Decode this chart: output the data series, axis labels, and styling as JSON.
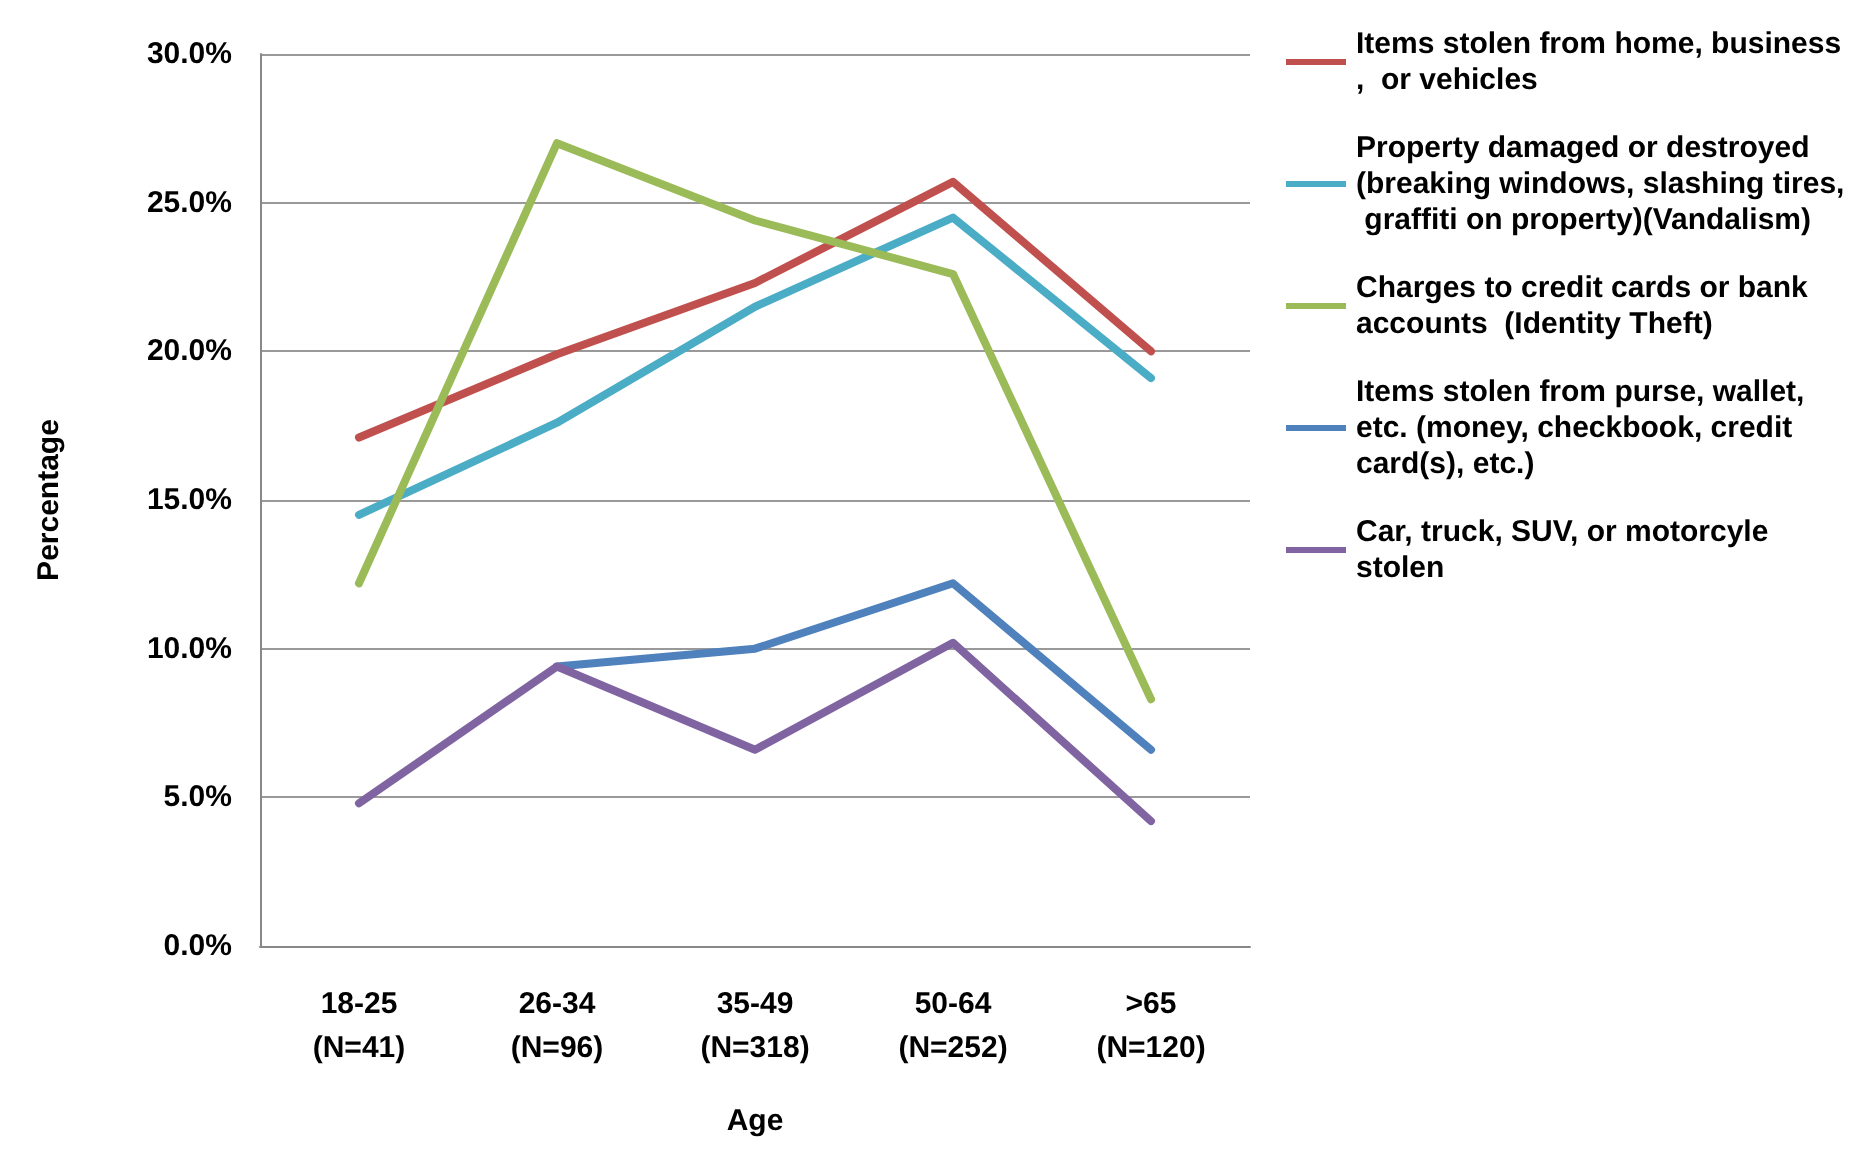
{
  "chart_data": {
    "type": "line",
    "xlabel": "Age",
    "ylabel": "Percentage",
    "categories": [
      "18-25\n(N=41)",
      "26-34\n(N=96)",
      "35-49\n(N=318)",
      "50-64\n(N=252)",
      ">65\n(N=120)"
    ],
    "series": [
      {
        "name": "Items stolen from home, business,  or vehicles",
        "color": "#c0504d",
        "values": [
          17.1,
          19.9,
          22.3,
          25.7,
          20.0
        ]
      },
      {
        "name": "Property damaged or destroyed (breaking windows, slashing tires, graffiti on property)(Vandalism)",
        "color": "#4bacc6",
        "values": [
          14.5,
          17.6,
          21.5,
          24.5,
          19.1
        ]
      },
      {
        "name": "Charges to credit cards or bank accounts  (Identity Theft)",
        "color": "#9bbb59",
        "values": [
          12.2,
          27.0,
          24.4,
          22.6,
          8.3
        ]
      },
      {
        "name": "Items stolen from purse, wallet, etc. (money, checkbook, credit card(s), etc.)",
        "color": "#4f81bd",
        "values": [
          null,
          9.4,
          10.0,
          12.2,
          6.6
        ]
      },
      {
        "name": "Car, truck, SUV, or motorcyle stolen",
        "color": "#8064a2",
        "values": [
          4.8,
          9.4,
          6.6,
          10.2,
          4.2
        ]
      }
    ],
    "ylim": [
      0,
      30
    ],
    "yticks": [
      {
        "value": 0,
        "label": "0.0%"
      },
      {
        "value": 5,
        "label": "5.0%"
      },
      {
        "value": 10,
        "label": "10.0%"
      },
      {
        "value": 15,
        "label": "15.0%"
      },
      {
        "value": 20,
        "label": "20.0%"
      },
      {
        "value": 25,
        "label": "25.0%"
      },
      {
        "value": 30,
        "label": "30.0%"
      }
    ],
    "grid": "y",
    "legend": "right",
    "marker": "none",
    "line_style": "solid"
  }
}
